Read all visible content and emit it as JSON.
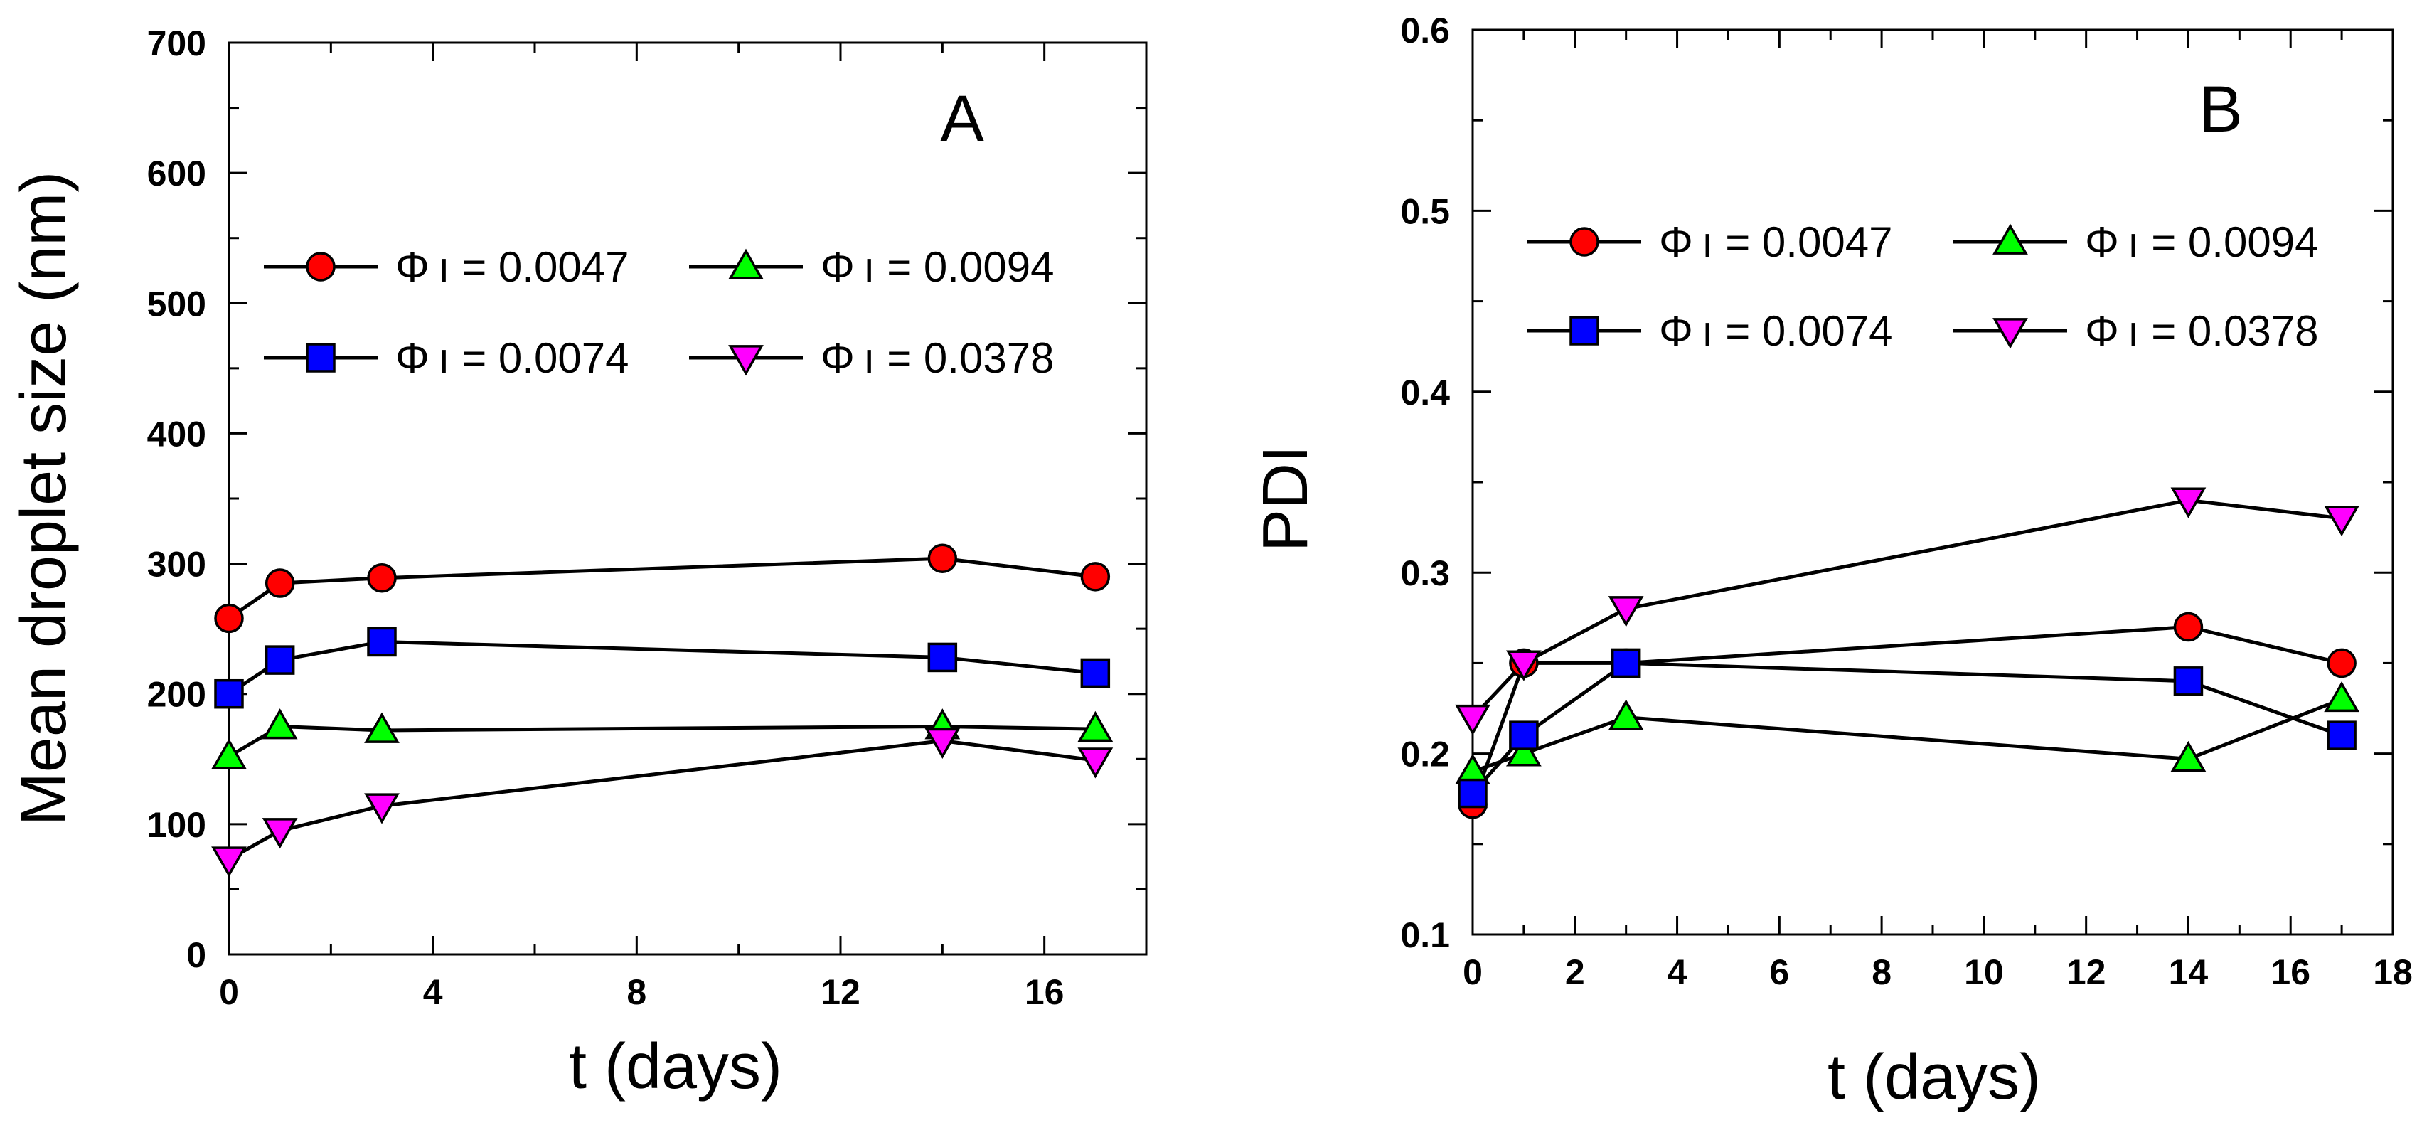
{
  "chart_data": [
    {
      "type": "line",
      "panel_label": "A",
      "xlabel": "t (days)",
      "ylabel": "Mean droplet size (nm)",
      "xlim": [
        0,
        18
      ],
      "ylim": [
        0,
        700
      ],
      "xticks": [
        0,
        4,
        8,
        12,
        16
      ],
      "xtick_labels": [
        "0",
        "4",
        "8",
        "12",
        "16"
      ],
      "yticks": [
        0,
        100,
        200,
        300,
        400,
        500,
        600,
        700
      ],
      "ytick_labels": [
        "0",
        "100",
        "200",
        "300",
        "400",
        "500",
        "600",
        "700"
      ],
      "grid": false,
      "legend_position": "upper center",
      "series": [
        {
          "name": "Φ ı = 0.0047",
          "color": "#ff0000",
          "marker": "circle",
          "x": [
            0,
            1,
            3,
            14,
            17
          ],
          "y": [
            258,
            285,
            289,
            304,
            290
          ]
        },
        {
          "name": "Φ ı = 0.0094",
          "color": "#00ff00",
          "marker": "triangle-up",
          "x": [
            0,
            1,
            3,
            14,
            17
          ],
          "y": [
            152,
            175,
            172,
            175,
            173
          ]
        },
        {
          "name": "Φ ı = 0.0074",
          "color": "#0000ff",
          "marker": "square",
          "x": [
            0,
            1,
            3,
            14,
            17
          ],
          "y": [
            200,
            226,
            240,
            228,
            216
          ]
        },
        {
          "name": "Φ ı = 0.0378",
          "color": "#ff00ff",
          "marker": "triangle-down",
          "x": [
            0,
            1,
            3,
            14,
            17
          ],
          "y": [
            73,
            95,
            114,
            164,
            149
          ]
        }
      ]
    },
    {
      "type": "line",
      "panel_label": "B",
      "xlabel": "t (days)",
      "ylabel": "PDI",
      "xlim": [
        0,
        18
      ],
      "ylim": [
        0.1,
        0.6
      ],
      "xticks": [
        0,
        2,
        4,
        6,
        8,
        10,
        12,
        14,
        16,
        18
      ],
      "xtick_labels": [
        "0",
        "2",
        "4",
        "6",
        "8",
        "10",
        "12",
        "14",
        "16",
        "18"
      ],
      "yticks": [
        0.1,
        0.2,
        0.3,
        0.4,
        0.5,
        0.6
      ],
      "ytick_labels": [
        "0.1",
        "0.2",
        "0.3",
        "0.4",
        "0.5",
        "0.6"
      ],
      "grid": false,
      "legend_position": "upper center",
      "series": [
        {
          "name": "Φ ı = 0.0047",
          "color": "#ff0000",
          "marker": "circle",
          "x": [
            0,
            1,
            3,
            14,
            17
          ],
          "y": [
            0.172,
            0.25,
            0.25,
            0.27,
            0.25
          ]
        },
        {
          "name": "Φ ı = 0.0094",
          "color": "#00ff00",
          "marker": "triangle-up",
          "x": [
            0,
            1,
            3,
            14,
            17
          ],
          "y": [
            0.19,
            0.2,
            0.22,
            0.197,
            0.23
          ]
        },
        {
          "name": "Φ ı = 0.0074",
          "color": "#0000ff",
          "marker": "square",
          "x": [
            0,
            1,
            3,
            14,
            17
          ],
          "y": [
            0.178,
            0.21,
            0.25,
            0.24,
            0.21
          ]
        },
        {
          "name": "Φ ı = 0.0378",
          "color": "#ff00ff",
          "marker": "triangle-down",
          "x": [
            0,
            1,
            3,
            14,
            17
          ],
          "y": [
            0.22,
            0.25,
            0.28,
            0.34,
            0.33
          ]
        }
      ]
    }
  ]
}
